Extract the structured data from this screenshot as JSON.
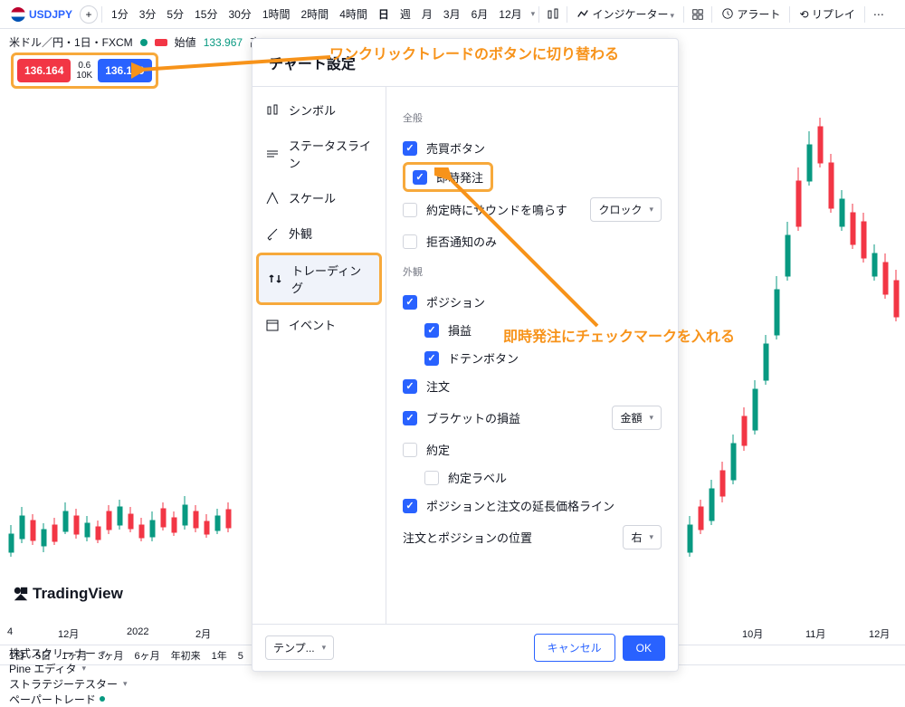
{
  "toolbar": {
    "ticker": "USDJPY",
    "intervals": [
      "1分",
      "3分",
      "5分",
      "15分",
      "30分",
      "1時間",
      "2時間",
      "4時間",
      "日",
      "週",
      "月",
      "3月",
      "6月",
      "12月"
    ],
    "active_interval": "日",
    "indicator_label": "インジケーター",
    "alert_label": "アラート",
    "replay_label": "リプレイ"
  },
  "chart_header": {
    "pair_label": "米ドル／円・1日・FXCM",
    "open_label": "始値",
    "open_value": "133.967",
    "hi_label": "高"
  },
  "prices": {
    "sell": "136.164",
    "spread": "0.6",
    "size": "10K",
    "buy": "136.170"
  },
  "dialog": {
    "title": "チャート設定",
    "sidebar": [
      {
        "label": "シンボル",
        "icon": "candle"
      },
      {
        "label": "ステータスライン",
        "icon": "lines"
      },
      {
        "label": "スケール",
        "icon": "scale"
      },
      {
        "label": "外観",
        "icon": "brush"
      },
      {
        "label": "トレーディング",
        "icon": "trading"
      },
      {
        "label": "イベント",
        "icon": "calendar"
      }
    ],
    "sect_general": "全般",
    "sect_appearance": "外観",
    "opts": {
      "buysell_btn": "売買ボタン",
      "instant_order": "即時発注",
      "sound_on_fill": "約定時にサウンドを鳴らす",
      "sound_select": "クロック",
      "reject_only": "拒否通知のみ",
      "position": "ポジション",
      "pnl": "損益",
      "doten_btn": "ドテンボタン",
      "order": "注文",
      "bracket_pnl": "ブラケットの損益",
      "bracket_select": "金額",
      "fill": "約定",
      "fill_label": "約定ラベル",
      "ext_lines": "ポジションと注文の延長価格ライン",
      "pos_place": "注文とポジションの位置",
      "pos_place_select": "右"
    },
    "footer": {
      "template": "テンプ...",
      "cancel": "キャンセル",
      "ok": "OK"
    }
  },
  "annotations": {
    "a1": "ワンクリックトレードのボタンに切り替わる",
    "a2": "即時発注にチェックマークを入れる"
  },
  "watermark": "TradingView",
  "time_labels": {
    "t1": "12月",
    "t2": "2022",
    "t3": "2月",
    "t4": "10月",
    "t5": "11月",
    "t6": "12月"
  },
  "ranges": [
    "1日",
    "5日",
    "1ヶ月",
    "3ヶ月",
    "6ヶ月",
    "年初来",
    "1年",
    "5"
  ],
  "bottom_tabs": [
    "株式スクリーナー",
    "Pine エディタ",
    "ストラテジーテスター",
    "ペーパートレード"
  ],
  "colors": {
    "accent": "#2962ff",
    "sell": "#f23645",
    "buy": "#2962ff",
    "highlight": "#f7a93b",
    "anno": "#f7931a",
    "candle_up": "#089981",
    "candle_down": "#f23645"
  }
}
